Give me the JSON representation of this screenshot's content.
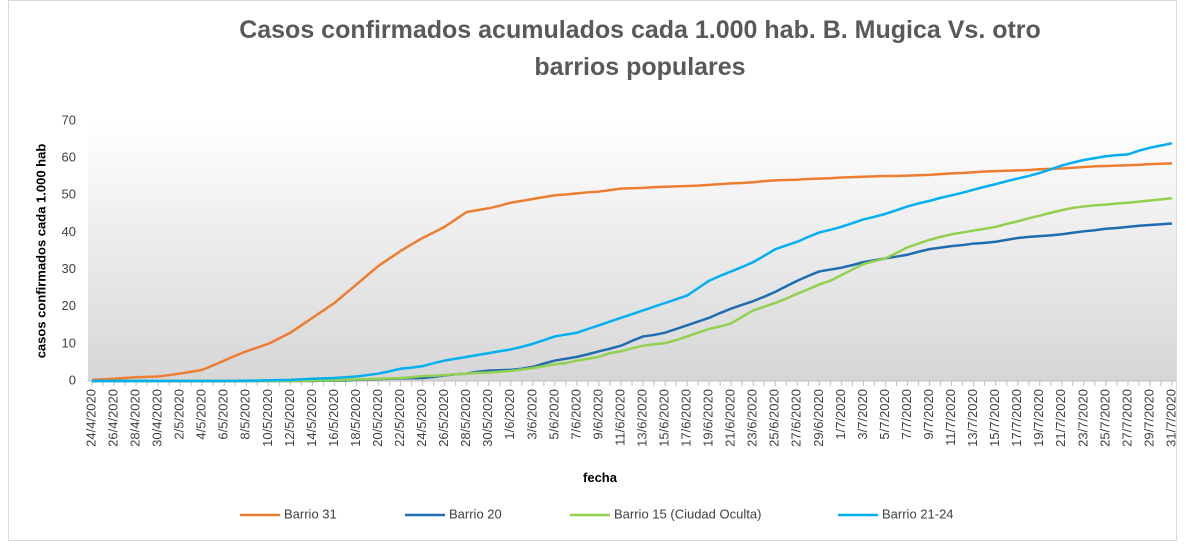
{
  "chart_data": {
    "type": "line",
    "title": "Casos confirmados acumulados cada 1.000 hab. B. Mugica Vs. otro barrios populares",
    "x_label": "fecha",
    "y_label": "casos confirmados cada 1.000 hab",
    "categories": [
      "24/4/2020",
      null,
      "26/4/2020",
      null,
      "28/4/2020",
      null,
      "30/4/2020",
      null,
      "2/5/2020",
      null,
      "4/5/2020",
      null,
      "6/5/2020",
      null,
      "8/5/2020",
      null,
      "10/5/2020",
      null,
      "12/5/2020",
      null,
      "14/5/2020",
      null,
      "16/5/2020",
      null,
      "18/5/2020",
      null,
      "20/5/2020",
      null,
      "22/5/2020",
      null,
      "24/5/2020",
      null,
      "26/5/2020",
      null,
      "28/5/2020",
      null,
      "30/5/2020",
      null,
      "1/6/2020",
      null,
      "3/6/2020",
      null,
      "5/6/2020",
      null,
      "7/6/2020",
      null,
      "9/6/2020",
      null,
      "11/6/2020",
      null,
      "13/6/2020",
      null,
      "15/6/2020",
      null,
      "17/6/2020",
      null,
      "19/6/2020",
      null,
      "21/6/2020",
      null,
      "23/6/2020",
      null,
      "25/6/2020",
      null,
      "27/6/2020",
      null,
      "29/6/2020",
      null,
      "1/7/2020",
      null,
      "3/7/2020",
      null,
      "5/7/2020",
      null,
      "7/7/2020",
      null,
      "9/7/2020",
      null,
      "11/7/2020",
      null,
      "13/7/2020",
      null,
      "15/7/2020",
      null,
      "17/7/2020",
      null,
      "19/7/2020",
      null,
      "21/7/2020",
      null,
      "23/7/2020",
      null,
      "25/7/2020",
      null,
      "27/7/2020",
      null,
      "29/7/2020",
      null,
      "31/7/2020"
    ],
    "series": [
      {
        "name": "Barrio 31",
        "color": "#ed7d31",
        "values": [
          0.3,
          0.45,
          0.6,
          0.8,
          1,
          1.1,
          1.2,
          1.6,
          2,
          2.5,
          3,
          4.2,
          5.5,
          6.8,
          8,
          9,
          10,
          11.5,
          13,
          15,
          17,
          19,
          21,
          23.5,
          26,
          28.5,
          31,
          33,
          35,
          36.8,
          38.5,
          40,
          41.5,
          43.5,
          45.5,
          46,
          46.5,
          47.2,
          48,
          48.5,
          49,
          49.5,
          50,
          50.2,
          50.5,
          50.8,
          51,
          51.4,
          51.8,
          51.9,
          52,
          52.2,
          52.3,
          52.4,
          52.5,
          52.6,
          52.8,
          53,
          53.2,
          53.3,
          53.5,
          53.8,
          54,
          54.1,
          54.2,
          54.4,
          54.5,
          54.6,
          54.8,
          54.9,
          55,
          55.1,
          55.2,
          55.2,
          55.3,
          55.4,
          55.5,
          55.7,
          55.9,
          56,
          56.2,
          56.4,
          56.5,
          56.6,
          56.7,
          56.8,
          57,
          57.1,
          57.2,
          57.4,
          57.6,
          57.8,
          57.9,
          58,
          58.1,
          58.2,
          58.4,
          58.5,
          58.6
        ]
      },
      {
        "name": "Barrio 20",
        "color": "#1f6cb0",
        "values": [
          0,
          0,
          0,
          0,
          0,
          0,
          0,
          0,
          0,
          0,
          0,
          0,
          0,
          0,
          0,
          0,
          0,
          0,
          0,
          0,
          0,
          0.05,
          0.1,
          0.15,
          0.3,
          0.4,
          0.5,
          0.6,
          0.7,
          0.75,
          0.8,
          1.1,
          1.5,
          1.8,
          2,
          2.5,
          2.8,
          2.9,
          3,
          3.3,
          3.8,
          4.7,
          5.5,
          6,
          6.5,
          7.2,
          8,
          8.7,
          9.5,
          10.8,
          12,
          12.4,
          13,
          14,
          15,
          16,
          17,
          18.3,
          19.5,
          20.5,
          21.5,
          22.7,
          24,
          25.5,
          27,
          28.3,
          29.5,
          30,
          30.5,
          31.2,
          32,
          32.5,
          33,
          33.5,
          34,
          34.8,
          35.5,
          35.9,
          36.3,
          36.6,
          37,
          37.2,
          37.5,
          38,
          38.5,
          38.8,
          39,
          39.2,
          39.5,
          39.9,
          40.3,
          40.6,
          41,
          41.2,
          41.5,
          41.8,
          42,
          42.2,
          42.4
        ]
      },
      {
        "name": "Barrio 15 (Ciudad Oculta)",
        "color": "#92d050",
        "values": [
          0,
          0,
          0,
          0,
          0,
          0,
          0,
          0,
          0,
          0,
          0,
          0,
          0,
          0,
          0,
          0,
          0,
          0,
          0,
          0,
          0.1,
          0.15,
          0.2,
          0.3,
          0.4,
          0.5,
          0.6,
          0.7,
          0.8,
          1,
          1.3,
          1.4,
          1.6,
          1.8,
          2,
          2.2,
          2.3,
          2.5,
          2.7,
          3.1,
          3.5,
          4,
          4.5,
          4.8,
          5.5,
          6,
          6.5,
          7.5,
          8,
          8.8,
          9.5,
          9.9,
          10.2,
          11,
          12,
          13,
          14,
          14.7,
          15.5,
          17.3,
          19,
          20,
          21,
          22.2,
          23.5,
          24.7,
          26,
          27,
          28.5,
          30,
          31.5,
          32.3,
          33,
          34.5,
          36,
          37,
          38,
          38.8,
          39.5,
          40,
          40.5,
          41,
          41.5,
          42.3,
          43,
          43.8,
          44.5,
          45.3,
          46,
          46.6,
          47,
          47.3,
          47.5,
          47.8,
          48,
          48.3,
          48.6,
          48.9,
          49.2
        ]
      },
      {
        "name": "Barrio 21-24",
        "color": "#00b0f0",
        "values": [
          0,
          0,
          0,
          0,
          0,
          0,
          0,
          0,
          0,
          0,
          0,
          0,
          0,
          0,
          0.1,
          0.1,
          0.2,
          0.25,
          0.3,
          0.45,
          0.6,
          0.7,
          0.8,
          1,
          1.2,
          1.6,
          2,
          2.6,
          3.3,
          3.6,
          4,
          4.8,
          5.5,
          6,
          6.5,
          7,
          7.5,
          8,
          8.5,
          9.2,
          10,
          11,
          12,
          12.5,
          13,
          14,
          15,
          16,
          17,
          18,
          19,
          20,
          21,
          22,
          23,
          25,
          27,
          28.3,
          29.5,
          30.7,
          32,
          33.7,
          35.5,
          36.5,
          37.5,
          38.8,
          40,
          40.7,
          41.5,
          42.5,
          43.5,
          44.2,
          45,
          46,
          47,
          47.8,
          48.5,
          49.3,
          50,
          50.7,
          51.5,
          52.3,
          53,
          53.8,
          54.5,
          55.2,
          56,
          57,
          58,
          58.8,
          59.5,
          60,
          60.5,
          60.8,
          61,
          62,
          62.8,
          63.4,
          64
        ]
      }
    ],
    "ylim": [
      0,
      70
    ],
    "yticks": [
      0,
      10,
      20,
      30,
      40,
      50,
      60,
      70
    ],
    "grid": false,
    "legend": "bottom"
  }
}
